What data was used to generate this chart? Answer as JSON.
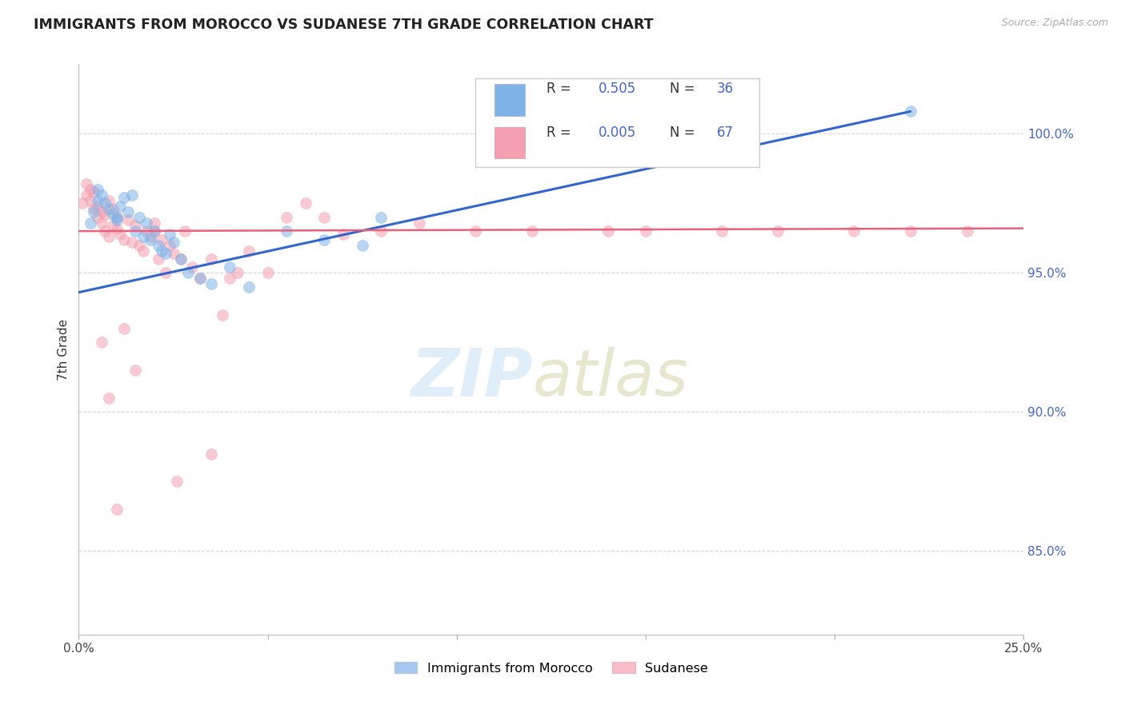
{
  "title": "IMMIGRANTS FROM MOROCCO VS SUDANESE 7TH GRADE CORRELATION CHART",
  "source": "Source: ZipAtlas.com",
  "ylabel": "7th Grade",
  "xlim": [
    0.0,
    25.0
  ],
  "ylim": [
    82.0,
    102.5
  ],
  "blue_scatter_x": [
    0.3,
    0.4,
    0.5,
    0.5,
    0.6,
    0.7,
    0.8,
    0.9,
    1.0,
    1.0,
    1.1,
    1.2,
    1.3,
    1.4,
    1.5,
    1.6,
    1.7,
    1.8,
    1.9,
    2.0,
    2.1,
    2.2,
    2.3,
    2.4,
    2.5,
    2.7,
    2.9,
    3.2,
    3.5,
    4.0,
    4.5,
    5.5,
    6.5,
    7.5,
    8.0,
    22.0
  ],
  "blue_scatter_y": [
    96.8,
    97.2,
    97.6,
    98.0,
    97.8,
    97.5,
    97.3,
    97.1,
    97.0,
    96.9,
    97.4,
    97.7,
    97.2,
    97.8,
    96.5,
    97.0,
    96.3,
    96.8,
    96.2,
    96.5,
    96.0,
    95.8,
    95.7,
    96.4,
    96.1,
    95.5,
    95.0,
    94.8,
    94.6,
    95.2,
    94.5,
    96.5,
    96.2,
    96.0,
    97.0,
    100.8
  ],
  "pink_scatter_x": [
    0.1,
    0.2,
    0.2,
    0.3,
    0.3,
    0.4,
    0.4,
    0.5,
    0.5,
    0.6,
    0.6,
    0.7,
    0.7,
    0.8,
    0.8,
    0.9,
    0.9,
    1.0,
    1.0,
    1.1,
    1.2,
    1.3,
    1.4,
    1.5,
    1.6,
    1.7,
    1.8,
    1.9,
    2.0,
    2.1,
    2.2,
    2.3,
    2.4,
    2.5,
    2.7,
    2.8,
    3.0,
    3.2,
    3.5,
    3.8,
    4.0,
    4.2,
    4.5,
    5.0,
    5.5,
    6.0,
    6.5,
    7.0,
    8.0,
    9.0,
    10.5,
    12.0,
    14.0,
    15.0,
    17.0,
    18.5,
    20.5,
    22.0,
    23.5,
    2.0,
    0.6,
    0.8,
    1.2,
    1.5,
    2.6,
    3.5,
    1.0
  ],
  "pink_scatter_y": [
    97.5,
    97.8,
    98.2,
    97.6,
    98.0,
    97.3,
    97.9,
    97.4,
    97.0,
    97.2,
    96.8,
    96.5,
    97.1,
    96.3,
    97.6,
    96.7,
    97.3,
    96.6,
    97.0,
    96.4,
    96.2,
    96.9,
    96.1,
    96.7,
    96.0,
    95.8,
    96.5,
    96.3,
    96.8,
    95.5,
    96.2,
    95.0,
    96.0,
    95.7,
    95.5,
    96.5,
    95.2,
    94.8,
    95.5,
    93.5,
    94.8,
    95.0,
    95.8,
    95.0,
    97.0,
    97.5,
    97.0,
    96.4,
    96.5,
    96.8,
    96.5,
    96.5,
    96.5,
    96.5,
    96.5,
    96.5,
    96.5,
    96.5,
    96.5,
    96.5,
    92.5,
    90.5,
    93.0,
    91.5,
    87.5,
    88.5,
    86.5
  ],
  "blue_line_x": [
    0.0,
    22.0
  ],
  "blue_line_y": [
    94.3,
    100.8
  ],
  "pink_line_x": [
    0.0,
    25.0
  ],
  "pink_line_y": [
    96.5,
    96.6
  ],
  "marker_size": 100,
  "blue_color": "#7fb3e8",
  "pink_color": "#f4a0b0",
  "blue_line_color": "#3366cc",
  "pink_line_color": "#e8607a",
  "background_color": "#ffffff",
  "grid_color": "#cccccc",
  "yticks": [
    85.0,
    90.0,
    95.0,
    100.0
  ],
  "xticks": [
    0.0,
    5.0,
    10.0,
    15.0,
    20.0,
    25.0
  ],
  "xtick_labels": [
    "0.0%",
    "",
    "",
    "",
    "",
    "25.0%"
  ],
  "legend_r1_text": "R = ",
  "legend_r1_val": "0.505",
  "legend_n1_text": "N = ",
  "legend_n1_val": "36",
  "legend_r2_val": "0.005",
  "legend_n2_val": "67"
}
